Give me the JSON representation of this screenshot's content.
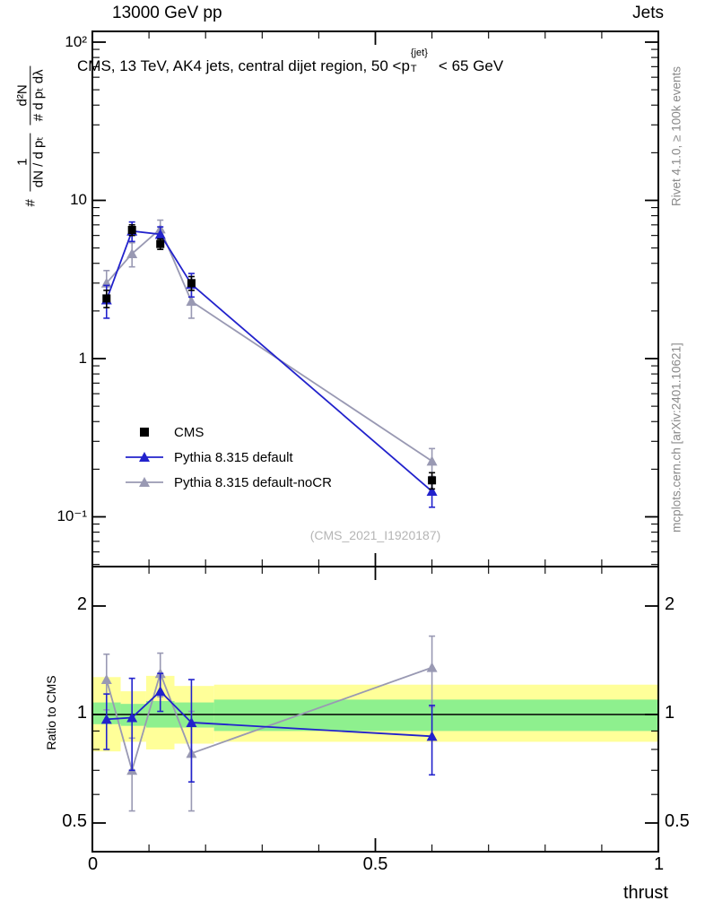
{
  "header": {
    "left": "13000 GeV pp",
    "right": "Jets"
  },
  "annotation": {
    "prefix": "CMS, 13 TeV, AK4 jets, central dijet region, 50 <p",
    "sup": "{jet}",
    "sub": "T",
    "suffix": "< 65 GeV"
  },
  "ylabel_formula": {
    "prefix": "#",
    "f1_num": "1",
    "f1_den": "dN / d pₜ",
    "f2_num": "d²N",
    "f2_den": "# d pₜ dλ"
  },
  "right_margin": {
    "top": "Rivet 4.1.0, ≥ 100k events",
    "bottom": "mcplots.cern.ch [arXiv:2401.10621]"
  },
  "watermark": "(CMS_2021_I1920187)",
  "axis_x": {
    "title": "thrust",
    "tick_labels": [
      "0",
      "0.5",
      "1"
    ],
    "tick_values": [
      0,
      0.5,
      1
    ]
  },
  "legend": {
    "items": [
      {
        "label": "CMS",
        "marker": "square",
        "color": "#000000"
      },
      {
        "label": "Pythia 8.315 default",
        "marker": "triangle-line",
        "color": "#2222cc"
      },
      {
        "label": "Pythia 8.315 default-noCR",
        "marker": "triangle-line",
        "color": "#9999b3"
      }
    ]
  },
  "colors": {
    "accent_blue": "#2222cc",
    "accent_gray": "#9999b3",
    "band_yellow": "#ffff99",
    "band_green": "#8ef08e",
    "frame": "#000000",
    "watermark_text": "#b5b5b5",
    "margin_text": "#8a8a8a"
  },
  "chart_data": [
    {
      "type": "line",
      "panel": "main",
      "title": "13000 GeV pp",
      "title_right": "Jets",
      "xlabel": "thrust",
      "ylog": true,
      "xlim": [
        0,
        1
      ],
      "ylim": [
        0.048,
        114
      ],
      "x": [
        0.025,
        0.07,
        0.12,
        0.175,
        0.6
      ],
      "series": [
        {
          "name": "CMS",
          "marker": "square",
          "line": false,
          "color": "#000000",
          "values": [
            2.4,
            6.5,
            5.3,
            3.0,
            0.17
          ],
          "yerr": [
            0.3,
            0.5,
            0.4,
            0.3,
            0.02
          ]
        },
        {
          "name": "Pythia 8.315 default",
          "marker": "triangle",
          "line": true,
          "color": "#2222cc",
          "values": [
            2.35,
            6.4,
            6.1,
            2.95,
            0.145
          ],
          "yerr": [
            0.55,
            0.9,
            0.7,
            0.5,
            0.03
          ]
        },
        {
          "name": "Pythia 8.315 default-noCR",
          "marker": "triangle",
          "line": true,
          "color": "#9999b3",
          "values": [
            3.0,
            4.6,
            6.6,
            2.3,
            0.225
          ],
          "yerr": [
            0.6,
            0.8,
            0.9,
            0.5,
            0.045
          ]
        }
      ],
      "ytick_labels": [
        "10²",
        "10",
        "1",
        "10⁻¹"
      ],
      "ytick_values": [
        100,
        10,
        1,
        0.1
      ]
    },
    {
      "type": "ratio",
      "panel": "ratio",
      "ylabel": "Ratio to CMS",
      "ylog": true,
      "xlim": [
        0,
        1
      ],
      "ylim": [
        0.42,
        2.57
      ],
      "x": [
        0.025,
        0.07,
        0.12,
        0.175,
        0.6
      ],
      "series": [
        {
          "name": "Pythia 8.315 default",
          "marker": "triangle",
          "line": true,
          "color": "#2222cc",
          "values": [
            0.97,
            0.98,
            1.16,
            0.95,
            0.87
          ],
          "yerr": [
            0.17,
            0.28,
            0.14,
            0.3,
            0.19
          ]
        },
        {
          "name": "Pythia 8.315 default-noCR",
          "marker": "triangle",
          "line": true,
          "color": "#9999b3",
          "values": [
            1.25,
            0.7,
            1.3,
            0.78,
            1.35
          ],
          "yerr": [
            0.22,
            0.16,
            0.18,
            0.24,
            0.3
          ]
        }
      ],
      "ytick_labels": [
        "2",
        "1",
        "0.5"
      ],
      "ytick_values": [
        2,
        1,
        0.5
      ],
      "bands": {
        "yellow": [
          {
            "x0": 0,
            "x1": 0.05,
            "lo": 0.79,
            "hi": 1.27
          },
          {
            "x0": 0.05,
            "x1": 0.095,
            "lo": 0.84,
            "hi": 1.16
          },
          {
            "x0": 0.095,
            "x1": 0.145,
            "lo": 0.8,
            "hi": 1.28
          },
          {
            "x0": 0.145,
            "x1": 0.215,
            "lo": 0.83,
            "hi": 1.2
          },
          {
            "x0": 0.215,
            "x1": 1,
            "lo": 0.84,
            "hi": 1.21
          }
        ],
        "green": [
          {
            "x0": 0,
            "x1": 0.05,
            "lo": 0.94,
            "hi": 1.08
          },
          {
            "x0": 0.05,
            "x1": 0.095,
            "lo": 0.93,
            "hi": 1.07
          },
          {
            "x0": 0.095,
            "x1": 0.145,
            "lo": 0.92,
            "hi": 1.09
          },
          {
            "x0": 0.145,
            "x1": 0.215,
            "lo": 0.92,
            "hi": 1.08
          },
          {
            "x0": 0.215,
            "x1": 1,
            "lo": 0.9,
            "hi": 1.1
          }
        ]
      }
    }
  ]
}
